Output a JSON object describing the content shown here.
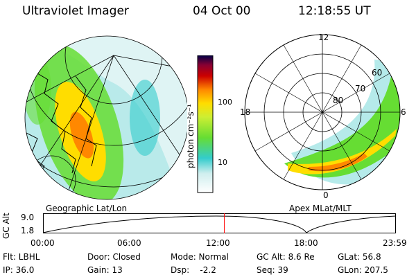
{
  "header": {
    "title": "Ultraviolet Imager",
    "date": "04 Oct 00",
    "time": "12:18:55 UT"
  },
  "left_panel": {
    "caption": "Geographic Lat/Lon"
  },
  "right_panel": {
    "caption": "Apex  MLat/MLT",
    "mlt_labels": [
      "12",
      "18",
      "6",
      "0"
    ],
    "mlat_labels": [
      "80",
      "70",
      "60"
    ]
  },
  "colorbar": {
    "unit_label": "photon cm⁻²s⁻¹",
    "tick_labels": [
      "100",
      "10"
    ]
  },
  "gc_alt_strip": {
    "axis_label": "GC Alt",
    "y_ticks": [
      "9.0",
      "1.8"
    ],
    "x_ticks": [
      "00:00",
      "06:00",
      "12:00",
      "18:00",
      "23:59"
    ],
    "current_time_hours": 12.32
  },
  "status": {
    "row1": [
      "Flt: LBHL",
      "Door: Closed",
      "Mode: Normal",
      "GC Alt: 8.6 Re",
      "GLat:  56.8"
    ],
    "row2": [
      "IP: 36.0",
      "Gain: 13",
      "Dsp:    -2.2",
      "Seq: 39",
      "GLon: 207.5"
    ]
  },
  "colors": {
    "marker": "#ff0000",
    "scale": [
      "#ffffff",
      "#33cccc",
      "#66dd33",
      "#ffdd00",
      "#ff8800",
      "#cc0000",
      "#880033",
      "#000044"
    ]
  }
}
